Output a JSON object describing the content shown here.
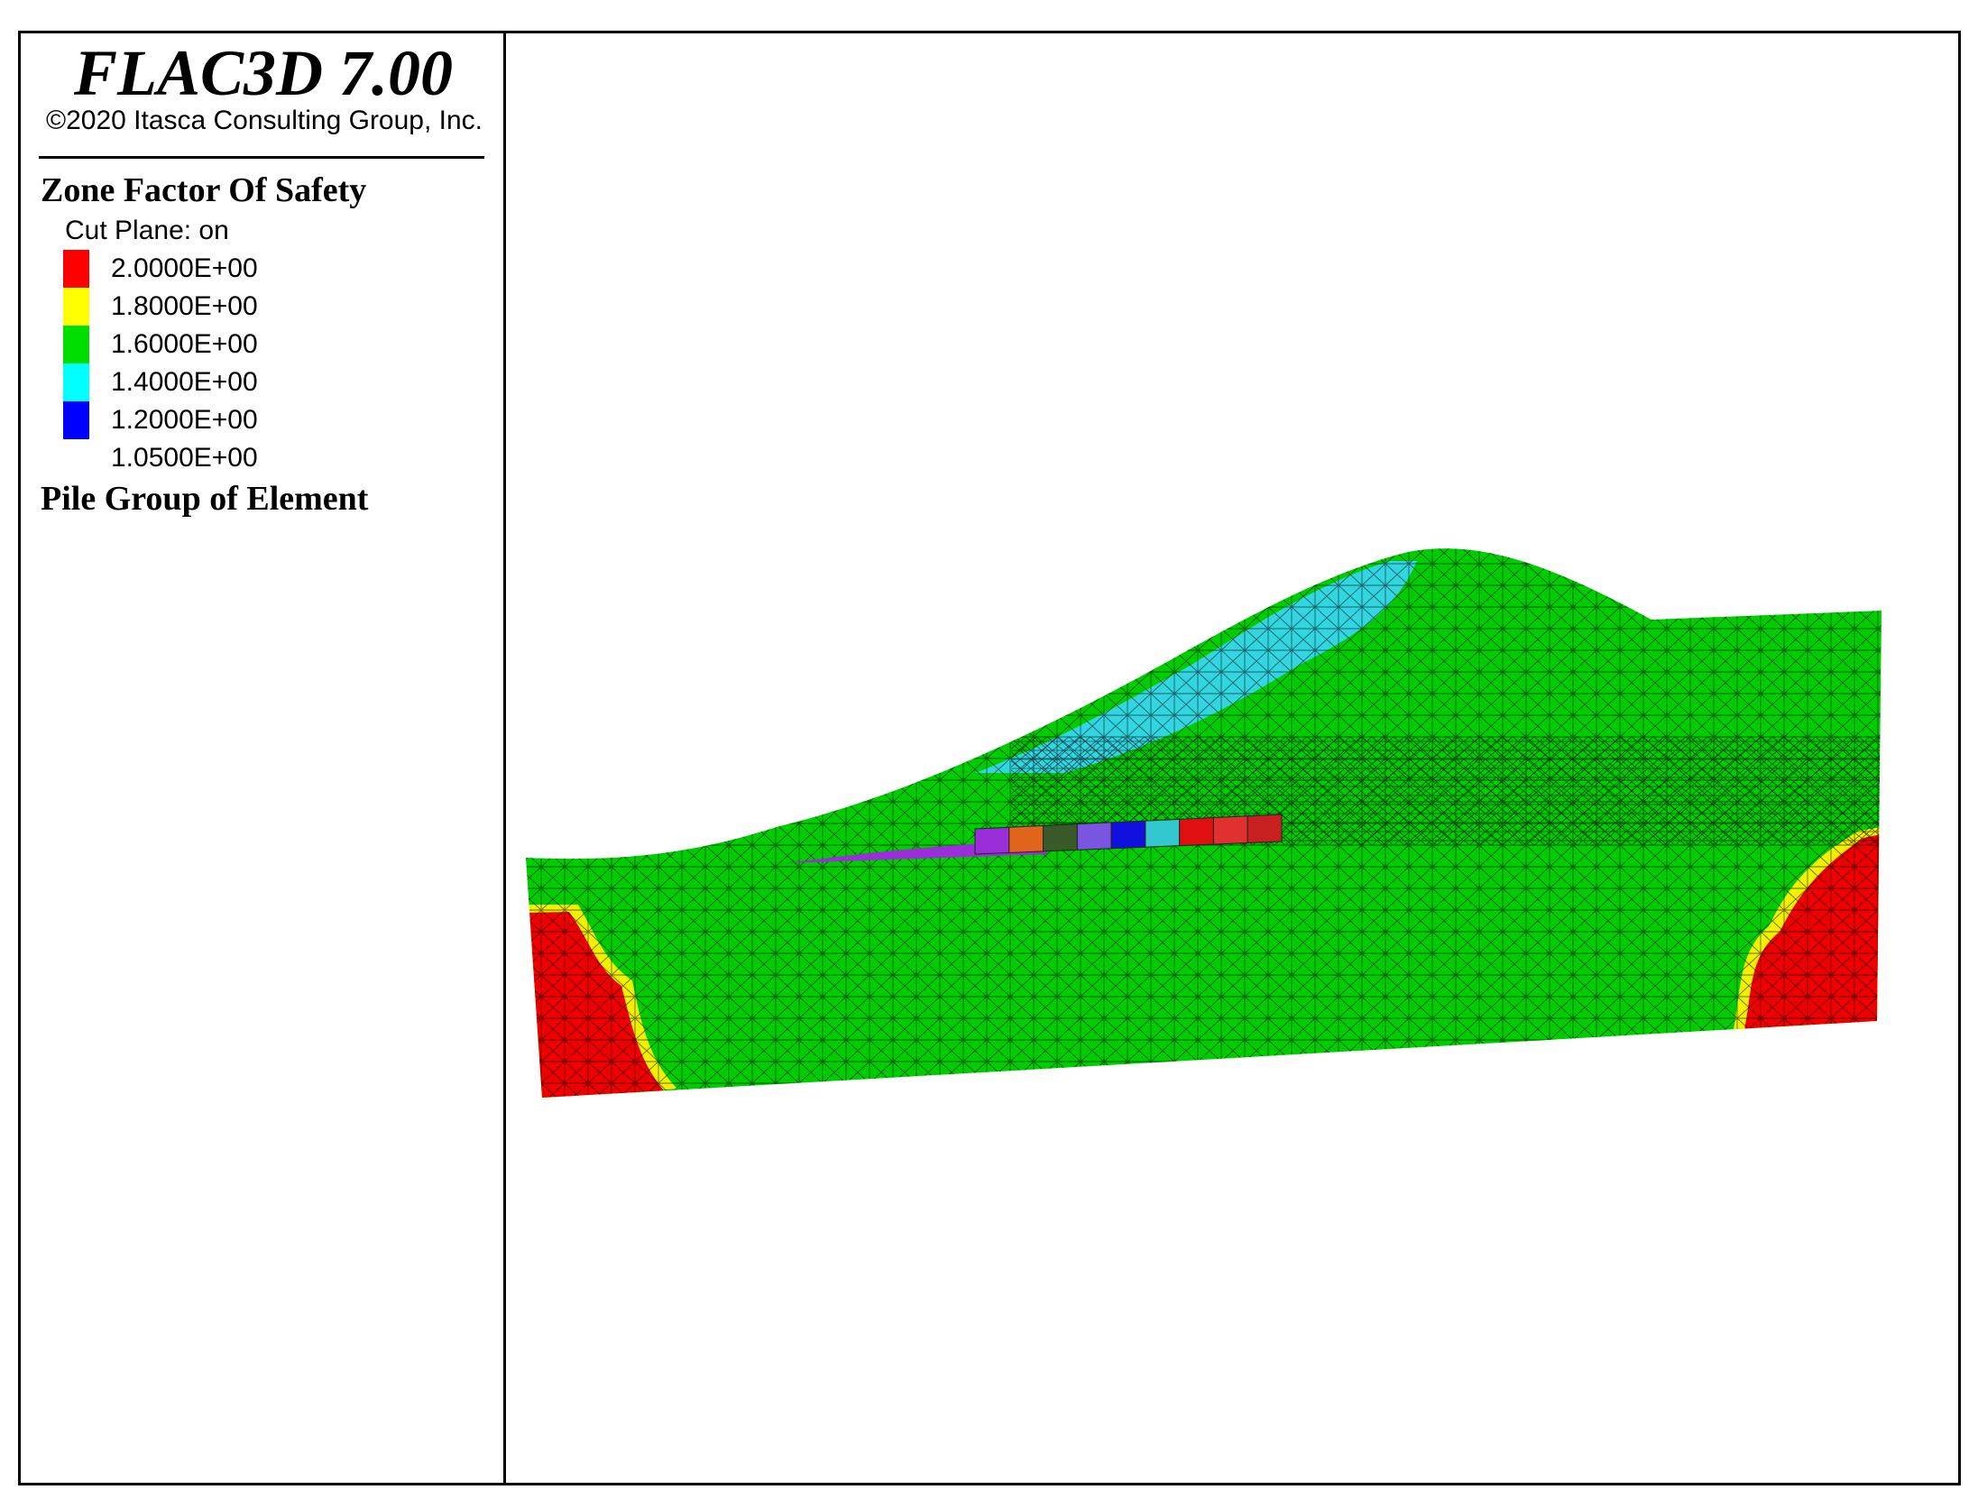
{
  "app": {
    "title": "FLAC3D 7.00",
    "copyright": "©2020 Itasca Consulting Group, Inc."
  },
  "legend": {
    "zone_heading": "Zone Factor Of Safety",
    "cut_plane": "Cut Plane: on",
    "entries": [
      {
        "value": "2.0000E+00",
        "color": "#ff0000"
      },
      {
        "value": "1.8000E+00",
        "color": "#ffff00"
      },
      {
        "value": "1.6000E+00",
        "color": "#00dd00"
      },
      {
        "value": "1.4000E+00",
        "color": "#00ffff"
      },
      {
        "value": "1.2000E+00",
        "color": "#0000ff"
      },
      {
        "value": "1.0500E+00",
        "color": ""
      }
    ],
    "pile_heading": "Pile Group of Element"
  },
  "model": {
    "colors": {
      "base": "#00cc00",
      "low_fs": "#33d6e0",
      "high_fs": "#ee0000",
      "transition": "#f0f000",
      "mesh": "#000000"
    },
    "pile_segment_colors": [
      "#9a2ed8",
      "#e0661e",
      "#3a5a2a",
      "#7a55e0",
      "#1010e0",
      "#33c8d0",
      "#e01010",
      "#e03030",
      "#c82020"
    ]
  }
}
